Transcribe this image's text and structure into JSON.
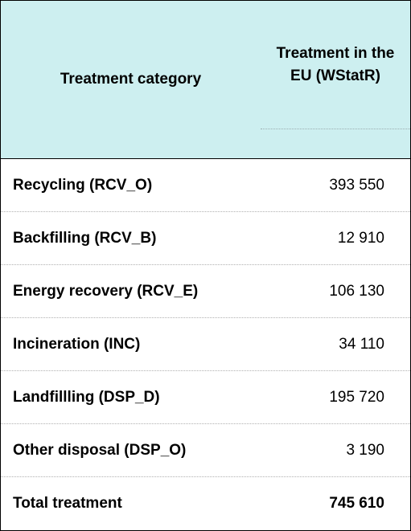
{
  "table": {
    "header": {
      "category": "Treatment category",
      "value": "Treatment in the EU (WStatR)"
    },
    "rows": [
      {
        "category": "Recycling (RCV_O)",
        "value": "393 550"
      },
      {
        "category": "Backfilling (RCV_B)",
        "value": "12 910"
      },
      {
        "category": "Energy recovery (RCV_E)",
        "value": "106 130"
      },
      {
        "category": "Incineration (INC)",
        "value": "34 110"
      },
      {
        "category": "Landfillling (DSP_D)",
        "value": "195 720"
      },
      {
        "category": "Other disposal (DSP_O)",
        "value": "3 190"
      },
      {
        "category": "Total treatment",
        "value": "745 610"
      }
    ],
    "colors": {
      "header_background": "#cdeff0",
      "border": "#000000"
    }
  }
}
